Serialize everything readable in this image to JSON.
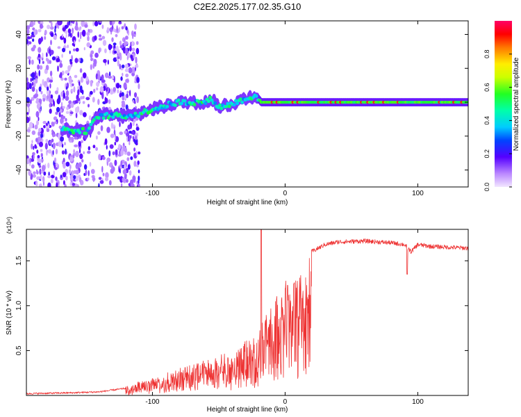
{
  "title": "C2E2.2025.177.02.35.G10",
  "chart_data": [
    {
      "type": "heatmap",
      "xlabel": "Height of straight line (km)",
      "ylabel": "Frequency (Hz)",
      "xlim": [
        -195,
        138
      ],
      "ylim": [
        -50,
        48
      ],
      "xticks": [
        -100,
        0,
        100
      ],
      "yticks": [
        -40,
        -20,
        0,
        20,
        40
      ],
      "colorbar": {
        "label": "Normalized spectral amplitude",
        "range": [
          0,
          1
        ],
        "ticks": [
          0.0,
          0.2,
          0.4,
          0.6,
          0.8
        ]
      },
      "ridge": {
        "x": [
          -165,
          -160,
          -150,
          -140,
          -130,
          -120,
          -110,
          -100,
          -90,
          -80,
          -70,
          -60,
          -55,
          -50,
          -40,
          -30,
          -22,
          -18,
          0,
          50,
          100,
          138
        ],
        "y": [
          -16,
          -17,
          -17,
          -8,
          -8,
          -8,
          -7,
          -4,
          -2,
          0,
          0,
          0,
          2,
          -3,
          -1,
          2,
          4,
          0,
          0,
          0,
          0,
          0
        ]
      }
    },
    {
      "type": "line",
      "xlabel": "Height of straight line (km)",
      "ylabel": "SNR (10 * v/v)",
      "multiplier": "(x10⁴)",
      "xlim": [
        -195,
        138
      ],
      "ylim": [
        0,
        1.85
      ],
      "xticks": [
        -100,
        0,
        100
      ],
      "yticks": [
        0.5,
        1.0,
        1.5
      ],
      "color": "#ee3333",
      "envelope": {
        "x": [
          -195,
          -160,
          -140,
          -120,
          -100,
          -80,
          -60,
          -40,
          -30,
          -20,
          -15,
          -10,
          -5,
          0,
          10,
          15,
          20,
          30,
          40,
          60,
          80,
          90,
          95,
          100,
          110,
          138
        ],
        "y": [
          0.02,
          0.03,
          0.04,
          0.08,
          0.2,
          0.3,
          0.38,
          0.48,
          0.6,
          0.7,
          0.9,
          1.1,
          1.15,
          1.25,
          1.3,
          1.45,
          1.6,
          1.68,
          1.71,
          1.72,
          1.7,
          1.68,
          1.6,
          1.68,
          1.66,
          1.64
        ]
      }
    }
  ]
}
